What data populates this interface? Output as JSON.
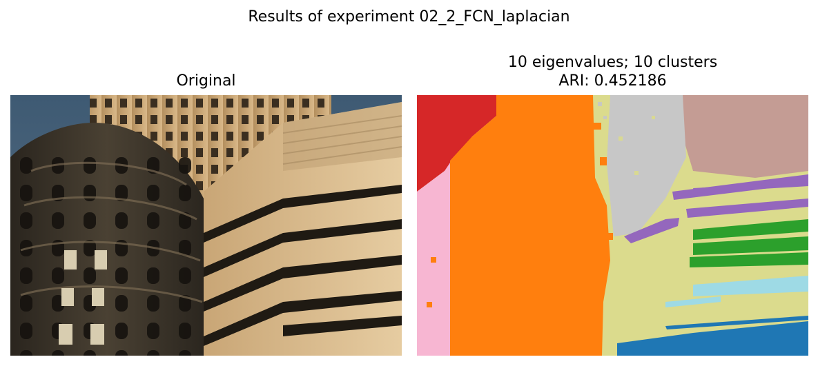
{
  "figure": {
    "suptitle": "Results of experiment 02_2_FCN_laplacian"
  },
  "panels": {
    "original": {
      "title": "Original",
      "image": "photo of a rounded ornate stone building beside beige office towers with horizontal window bands under a blue sky"
    },
    "segmentation": {
      "title_line1": "10 eigenvalues; 10 clusters",
      "title_line2": "ARI: 0.452186",
      "image": "segmentation map with ten colored clusters"
    }
  },
  "colors": {
    "cluster_red": "#d62728",
    "cluster_orange": "#ff7f0e",
    "cluster_pink": "#f7b6d2",
    "cluster_khaki": "#dbdb8d",
    "cluster_gray": "#c7c7c7",
    "cluster_rosybrown": "#c49c94",
    "cluster_purple": "#9467bd",
    "cluster_green": "#2ca02c",
    "cluster_lightblue": "#9edae5",
    "cluster_blue": "#1f77b4"
  }
}
